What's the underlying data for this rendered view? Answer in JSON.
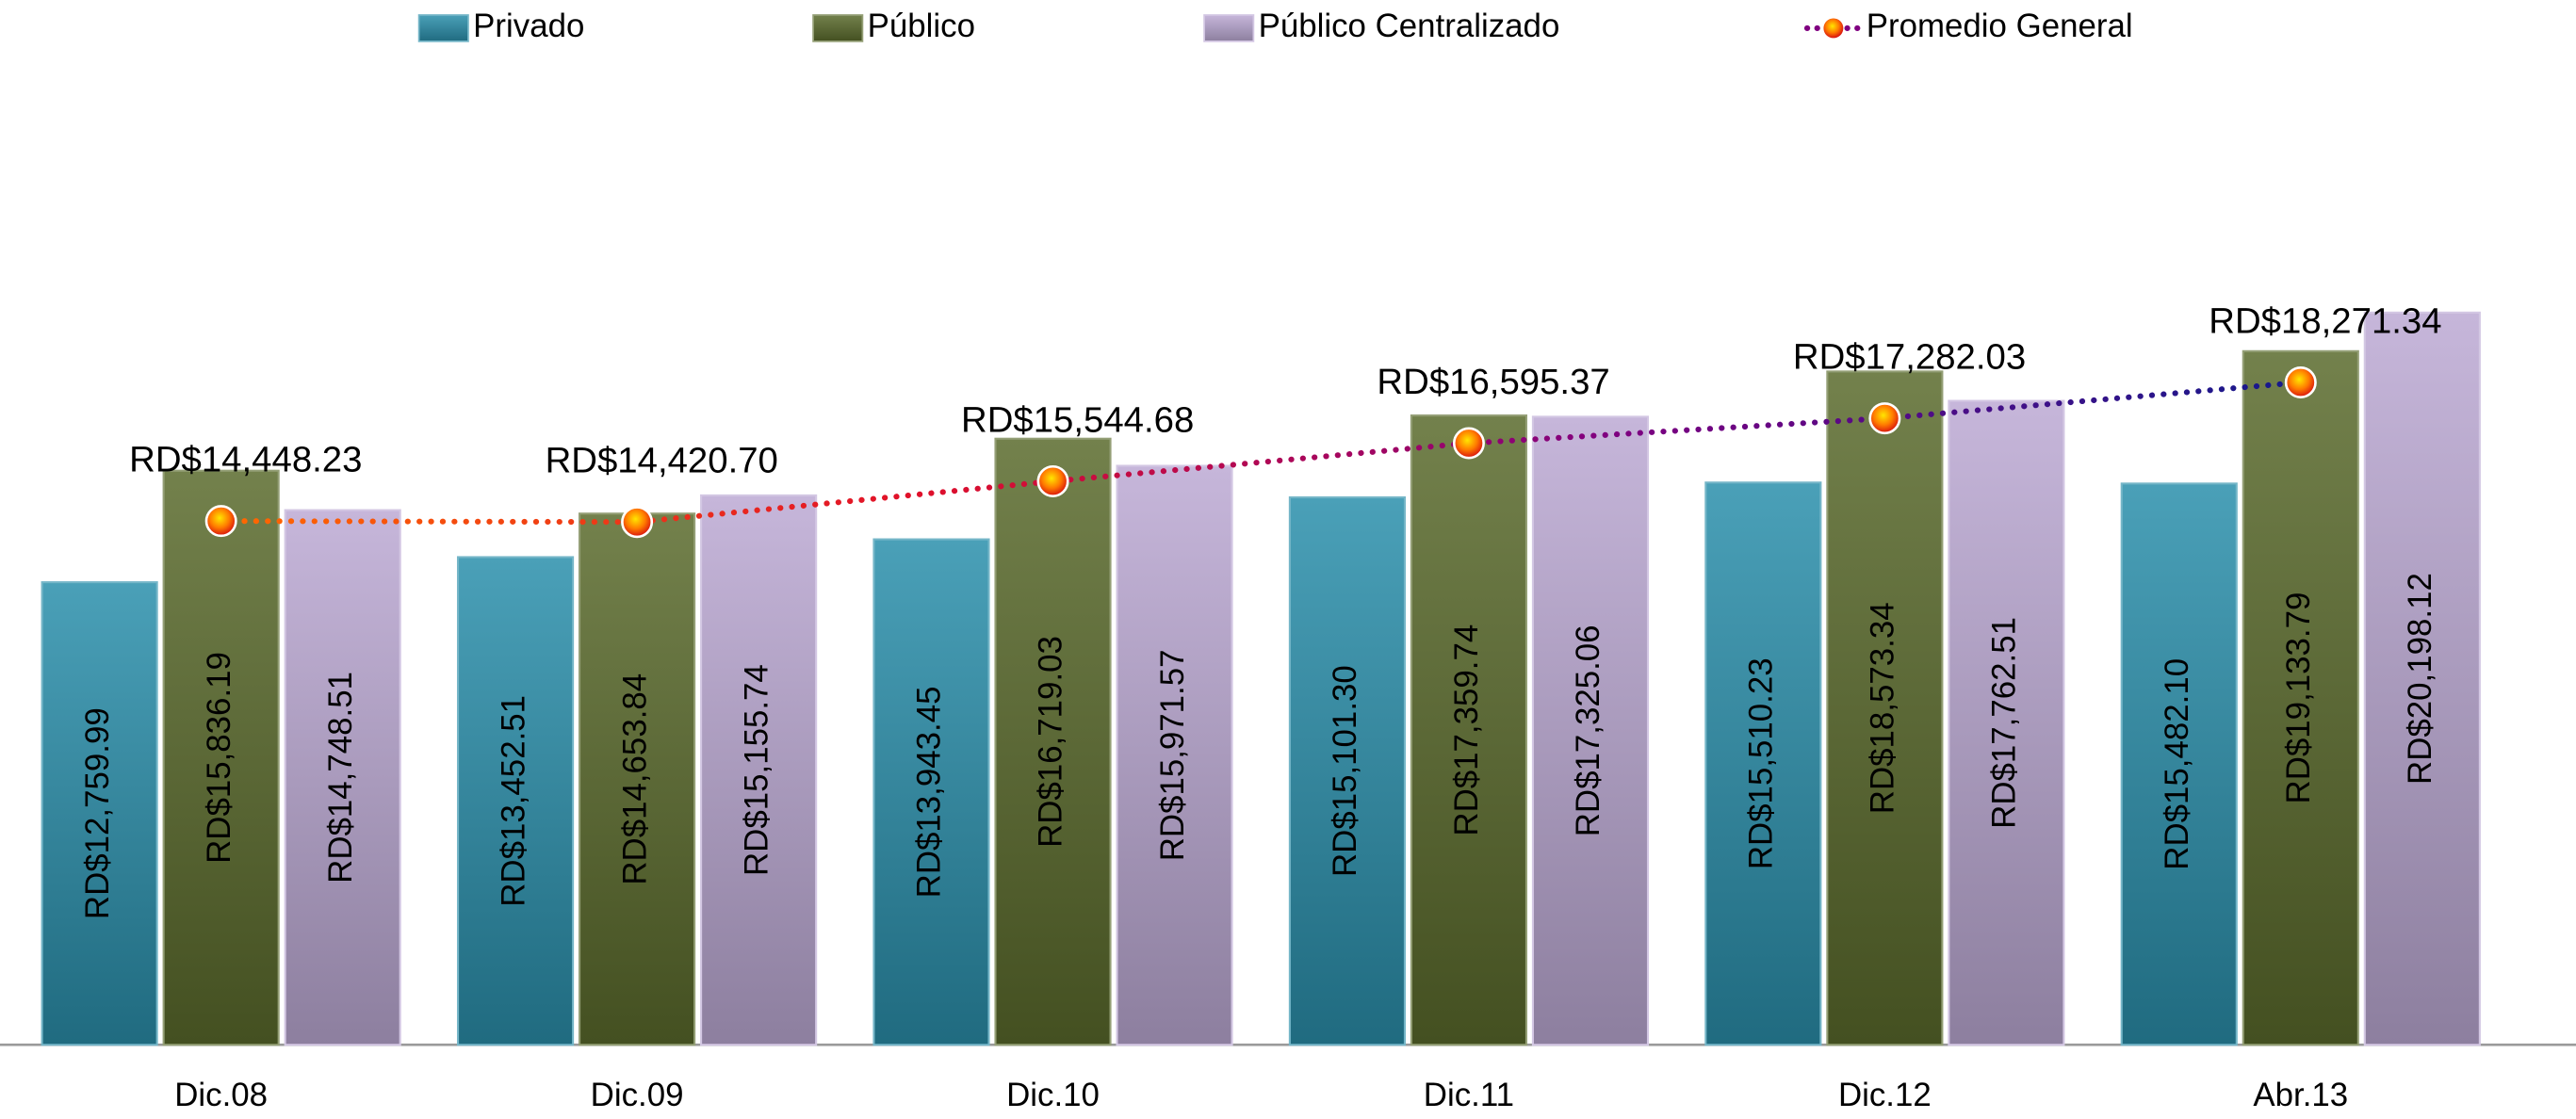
{
  "chart_data": {
    "type": "bar",
    "categories": [
      "Dic.08",
      "Dic.09",
      "Dic.10",
      "Dic.11",
      "Dic.12",
      "Abr.13"
    ],
    "ylim": [
      0,
      27000
    ],
    "series": [
      {
        "name": "Privado",
        "color": "#2a8fab",
        "values": [
          12759.99,
          13452.51,
          13943.45,
          15101.3,
          15510.23,
          15482.1
        ],
        "value_labels": [
          "RD$12,759.99",
          "RD$13,452.51",
          "RD$13,943.45",
          "RD$15,101.30",
          "RD$15,510.23",
          "RD$15,482.10"
        ]
      },
      {
        "name": "Público",
        "color": "#5a6b2c",
        "values": [
          15836.19,
          14653.84,
          16719.03,
          17359.74,
          18573.34,
          19133.79
        ],
        "value_labels": [
          "RD$15,836.19",
          "RD$14,653.84",
          "RD$16,719.03",
          "RD$17,359.74",
          "RD$18,573.34",
          "RD$19,133.79"
        ]
      },
      {
        "name": "Público Centralizado",
        "color": "#bca9d4",
        "values": [
          14748.51,
          15155.74,
          15971.57,
          17325.06,
          17762.51,
          20198.12
        ],
        "value_labels": [
          "RD$14,748.51",
          "RD$15,155.74",
          "RD$15,971.57",
          "RD$17,325.06",
          "RD$17,762.51",
          "RD$20,198.12"
        ]
      },
      {
        "name": "Promedio General",
        "type": "line",
        "color": [
          "#ff6a00",
          "#e0102a",
          "#800080",
          "#141a8c"
        ],
        "values": [
          14448.23,
          14420.7,
          15544.68,
          16595.37,
          17282.03,
          18271.34
        ],
        "value_labels": [
          "RD$14,448.23",
          "RD$14,420.70",
          "RD$15,544.68",
          "RD$16,595.37",
          "RD$17,282.03",
          "RD$18,271.34"
        ]
      }
    ]
  }
}
